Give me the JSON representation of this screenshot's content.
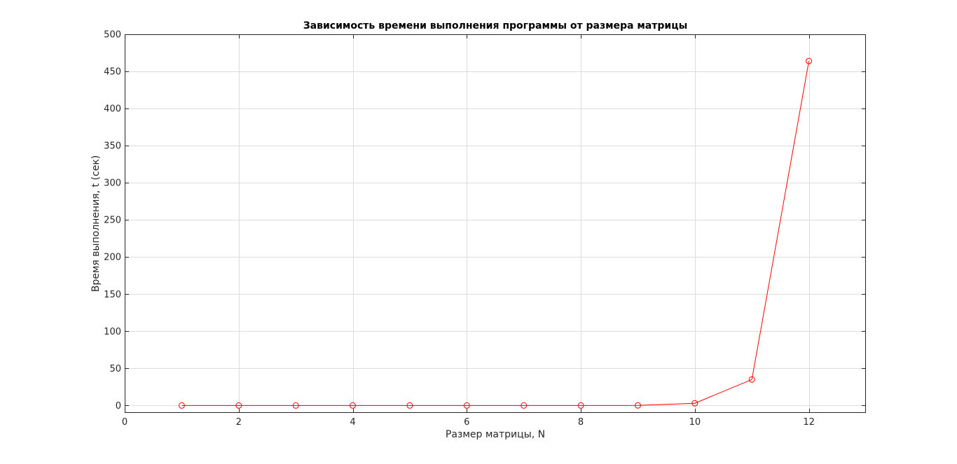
{
  "chart_data": {
    "type": "line",
    "title": "Зависимость времени выполнения программы от размера матрицы",
    "xlabel": "Размер матрицы, N",
    "ylabel": "Время выполнения, t (сек)",
    "xlim": [
      0,
      13
    ],
    "ylim": [
      -10,
      500
    ],
    "xticks": [
      0,
      2,
      4,
      6,
      8,
      10,
      12
    ],
    "yticks": [
      0,
      50,
      100,
      150,
      200,
      250,
      300,
      350,
      400,
      450,
      500
    ],
    "grid": true,
    "series": [
      {
        "x": [
          1,
          2,
          3,
          4,
          5,
          6,
          7,
          8,
          9,
          10,
          11,
          12
        ],
        "values": [
          0,
          0,
          0,
          0,
          0,
          0,
          0,
          0,
          0.1,
          3,
          35,
          464
        ],
        "color": "#ff0000",
        "marker": "circle"
      }
    ]
  }
}
